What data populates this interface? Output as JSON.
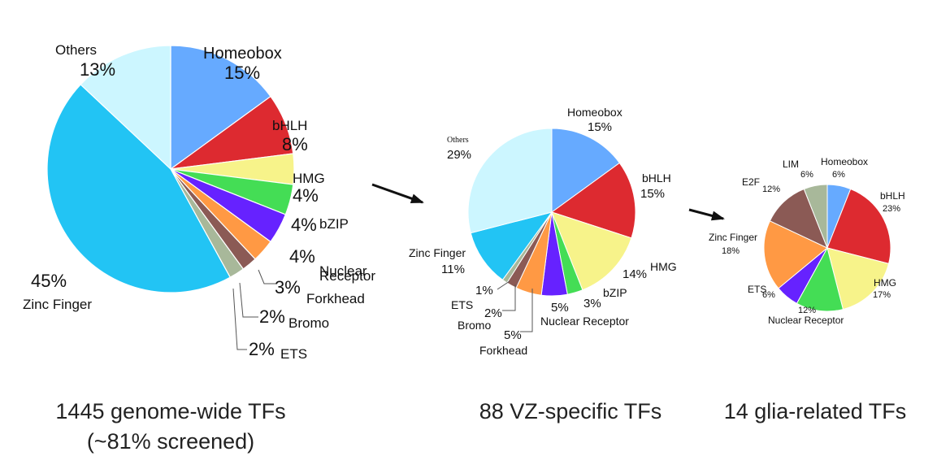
{
  "chart_data": [
    {
      "type": "pie",
      "caption": [
        "1445 genome-wide TFs",
        "(~81% screened)"
      ],
      "unit": "%",
      "slices": [
        {
          "name": "Homeobox",
          "value": 15,
          "label": "15%",
          "color": "#66aaff"
        },
        {
          "name": "bHLH",
          "value": 8,
          "label": "8%",
          "color": "#dd2a30"
        },
        {
          "name": "HMG",
          "value": 4,
          "label": "4%",
          "color": "#f7f38a"
        },
        {
          "name": "bZIP",
          "value": 4,
          "label": "4%",
          "color": "#44dd55"
        },
        {
          "name": "Nuclear Receptor",
          "name_lines": [
            "Nuclear",
            "Receptor"
          ],
          "value": 4,
          "label": "4%",
          "color": "#6622ff"
        },
        {
          "name": "Forkhead",
          "value": 3,
          "label": "3%",
          "color": "#ff9944"
        },
        {
          "name": "Bromo",
          "value": 2,
          "label": "2%",
          "color": "#8b5a55"
        },
        {
          "name": "ETS",
          "value": 2,
          "label": "2%",
          "color": "#a8b89a"
        },
        {
          "name": "Zinc Finger",
          "value": 45,
          "label": "45%",
          "color": "#22c4f4"
        },
        {
          "name": "Others",
          "value": 13,
          "label": "13%",
          "color": "#ccf6ff"
        }
      ]
    },
    {
      "type": "pie",
      "caption": [
        "88 VZ-specific TFs"
      ],
      "unit": "%",
      "slices": [
        {
          "name": "Homeobox",
          "value": 15,
          "label": "15%",
          "color": "#66aaff"
        },
        {
          "name": "bHLH",
          "value": 15,
          "label": "15%",
          "color": "#dd2a30"
        },
        {
          "name": "HMG",
          "value": 14,
          "label": "14%",
          "color": "#f7f38a"
        },
        {
          "name": "bZIP",
          "value": 3,
          "label": "3%",
          "color": "#44dd55"
        },
        {
          "name": "Nuclear Receptor",
          "value": 5,
          "label": "5%",
          "color": "#6622ff"
        },
        {
          "name": "Forkhead",
          "value": 5,
          "label": "5%",
          "color": "#ff9944"
        },
        {
          "name": "Bromo",
          "value": 2,
          "label": "2%",
          "color": "#8b5a55"
        },
        {
          "name": "ETS",
          "value": 1,
          "label": "1%",
          "color": "#a8b89a"
        },
        {
          "name": "Zinc Finger",
          "value": 11,
          "label": "11%",
          "color": "#22c4f4"
        },
        {
          "name": "Others",
          "value": 29,
          "label": "29%",
          "color": "#ccf6ff"
        }
      ]
    },
    {
      "type": "pie",
      "caption": [
        "14 glia-related TFs"
      ],
      "unit": "%",
      "slices": [
        {
          "name": "Homeobox",
          "value": 6,
          "label": "6%",
          "color": "#66aaff"
        },
        {
          "name": "bHLH",
          "value": 23,
          "label": "23%",
          "color": "#dd2a30"
        },
        {
          "name": "HMG",
          "value": 17,
          "label": "17%",
          "color": "#f7f38a"
        },
        {
          "name": "Nuclear Receptor",
          "value": 12,
          "label": "12%",
          "color": "#44dd55"
        },
        {
          "name": "ETS",
          "value": 6,
          "label": "6%",
          "color": "#6622ff"
        },
        {
          "name": "Zinc Finger",
          "value": 18,
          "label": "18%",
          "color": "#ff9944"
        },
        {
          "name": "E2F",
          "value": 12,
          "label": "12%",
          "color": "#8b5a55"
        },
        {
          "name": "LIM",
          "value": 6,
          "label": "6%",
          "color": "#a8b89a"
        }
      ]
    }
  ],
  "colors": {
    "arrow": "#111111",
    "leader_line": "#555555"
  }
}
